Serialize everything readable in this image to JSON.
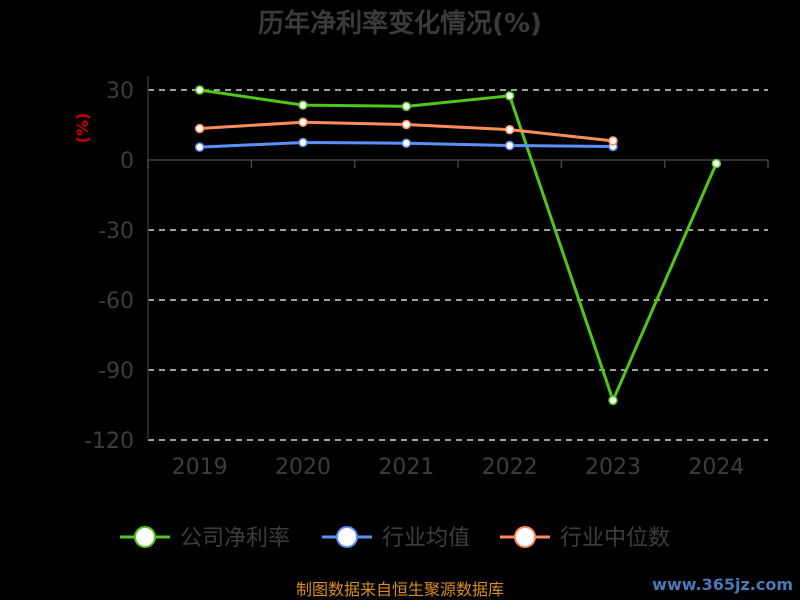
{
  "chart_data": {
    "type": "line",
    "title": "历年净利率变化情况(%)",
    "ylabel": "(%)",
    "categories": [
      "2019",
      "2020",
      "2021",
      "2022",
      "2023",
      "2024"
    ],
    "ylim": [
      -120,
      30
    ],
    "yticks": [
      30,
      0,
      -30,
      -60,
      -90,
      -120
    ],
    "series": [
      {
        "name": "公司净利率",
        "color": "#52c41a",
        "values": [
          30,
          23.5,
          23,
          27.5,
          -103,
          -1.5
        ]
      },
      {
        "name": "行业均值",
        "color": "#5b8ff9",
        "values": [
          5.5,
          7.5,
          7.2,
          6.2,
          5.8,
          null
        ]
      },
      {
        "name": "行业中位数",
        "color": "#ff8c5a",
        "values": [
          13.5,
          16.2,
          15.2,
          13,
          8.2,
          null
        ]
      }
    ],
    "grid": "horizontal-dashed",
    "legend_position": "bottom"
  },
  "footer": {
    "source": "制图数据来自恒生聚源数据库"
  },
  "watermark": {
    "text": "www.365jz.com"
  }
}
